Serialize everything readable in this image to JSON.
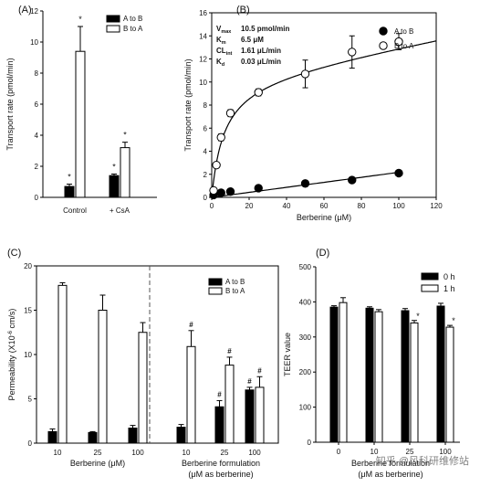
{
  "chart_data": [
    {
      "panel": "(A)",
      "type": "bar",
      "ylabel": "Transport rate (pmol/min)",
      "ylim": [
        0,
        12
      ],
      "yticks": [
        "0",
        "2",
        "4",
        "6",
        "8",
        "10",
        "12"
      ],
      "categories": [
        "Control",
        "+ CsA"
      ],
      "series": [
        {
          "name": "A to B",
          "values": [
            0.7,
            1.4
          ],
          "err": [
            0.15,
            0.1
          ],
          "color": "#000000"
        },
        {
          "name": "B to A",
          "values": [
            9.4,
            3.2
          ],
          "err": [
            1.6,
            0.35
          ],
          "color": "#ffffff"
        }
      ],
      "annotations": [
        "*",
        "*"
      ],
      "legend": "top-right"
    },
    {
      "panel": "(B)",
      "type": "scatter",
      "xlabel": "Berberine (μM)",
      "ylabel": "Transport rate (pmol/min)",
      "xlim": [
        0,
        120
      ],
      "ylim": [
        0,
        16
      ],
      "xticks": [
        "0",
        "20",
        "40",
        "60",
        "80",
        "100",
        "120"
      ],
      "yticks": [
        "0",
        "2",
        "4",
        "6",
        "8",
        "10",
        "12",
        "14",
        "16"
      ],
      "series": [
        {
          "name": "A to B",
          "marker": "filled",
          "x": [
            1,
            5,
            10,
            25,
            50,
            75,
            100
          ],
          "y": [
            0.2,
            0.4,
            0.5,
            0.8,
            1.2,
            1.5,
            2.1
          ],
          "err": [
            0.05,
            0.05,
            0.05,
            0.1,
            0.1,
            0.15,
            0.2
          ]
        },
        {
          "name": "B to A",
          "marker": "open",
          "x": [
            1,
            2.5,
            5,
            10,
            25,
            50,
            75,
            100
          ],
          "y": [
            0.6,
            2.8,
            5.2,
            7.3,
            9.1,
            10.7,
            12.6,
            13.5
          ],
          "err": [
            0.1,
            0.2,
            0.3,
            0.3,
            0.3,
            1.2,
            1.4,
            0.7
          ]
        }
      ],
      "parameters": [
        {
          "label": "V",
          "sub": "max",
          "value": "10.5 pmol/min"
        },
        {
          "label": "K",
          "sub": "m",
          "value": "6.5 μM"
        },
        {
          "label": "CL",
          "sub": "int",
          "value": "1.61 μL/min"
        },
        {
          "label": "K",
          "sub": "d",
          "value": "0.03 μL/min"
        }
      ],
      "legend": "top-right"
    },
    {
      "panel": "(C)",
      "type": "bar",
      "ylabel_main": "Permeability",
      "ylabel_unit": "(X10",
      "ylabel_exp": "-6",
      "ylabel_tail": " cm/s)",
      "ylim": [
        0,
        20
      ],
      "yticks": [
        "0",
        "5",
        "10",
        "15",
        "20"
      ],
      "groups": [
        {
          "label": "Berberine (μM)",
          "categories": [
            "10",
            "25",
            "100"
          ]
        },
        {
          "label_line1": "Berberine formulation",
          "label_line2": "(μM as berberine)",
          "categories": [
            "10",
            "25",
            "100"
          ]
        }
      ],
      "series": [
        {
          "name": "A to B",
          "values": [
            1.3,
            1.2,
            1.7,
            1.8,
            4.1,
            6.0
          ],
          "err": [
            0.3,
            0.1,
            0.3,
            0.3,
            0.7,
            0.3
          ],
          "color": "#000000"
        },
        {
          "name": "B to A",
          "values": [
            17.8,
            15.0,
            12.5,
            10.9,
            8.8,
            6.3
          ],
          "err": [
            0.3,
            1.7,
            1.1,
            1.8,
            0.9,
            1.2
          ],
          "color": "#ffffff"
        }
      ],
      "annotations": [
        {
          "index": 3,
          "series": "B to A",
          "text": "#"
        },
        {
          "index": 4,
          "series": "A to B",
          "text": "#"
        },
        {
          "index": 4,
          "series": "B to A",
          "text": "#"
        },
        {
          "index": 5,
          "series": "A to B",
          "text": "#"
        },
        {
          "index": 5,
          "series": "B to A",
          "text": "#"
        }
      ],
      "legend": "top-right"
    },
    {
      "panel": "(D)",
      "type": "bar",
      "ylabel": "TEER value",
      "ylim": [
        0,
        500
      ],
      "yticks": [
        "0",
        "100",
        "200",
        "300",
        "400",
        "500"
      ],
      "categories": [
        "0",
        "10",
        "25",
        "100"
      ],
      "xlabel_line1": "Berberine formulation",
      "xlabel_line2": "(μM as berberine)",
      "series": [
        {
          "name": "0 h",
          "values": [
            385,
            382,
            375,
            388
          ],
          "err": [
            4,
            4,
            6,
            8
          ],
          "color": "#000000"
        },
        {
          "name": "1 h",
          "values": [
            398,
            372,
            340,
            328
          ],
          "err": [
            14,
            6,
            7,
            5
          ],
          "color": "#ffffff"
        }
      ],
      "annotations": [
        "",
        "",
        "*",
        "*"
      ],
      "legend": "top-right"
    }
  ],
  "watermark": "知乎 @风科研维修站"
}
